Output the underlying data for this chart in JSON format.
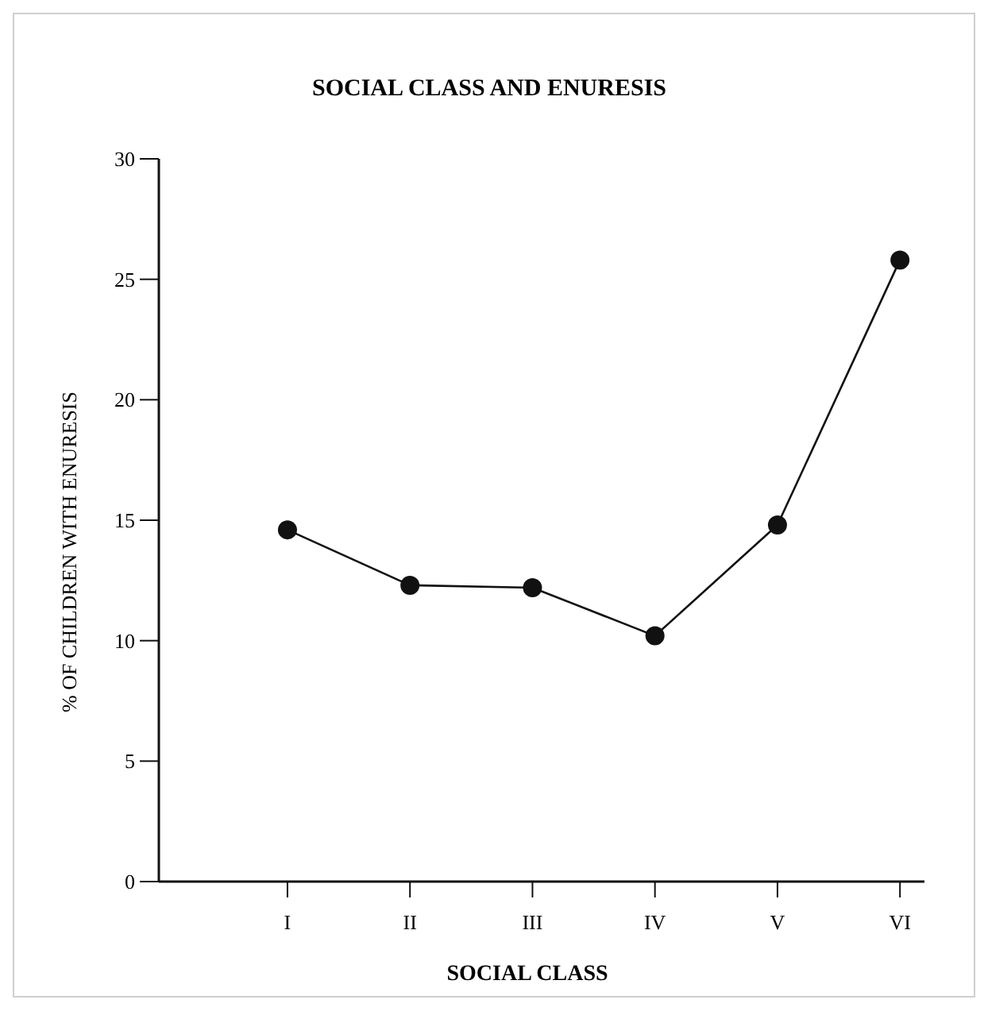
{
  "chart_data": {
    "type": "line",
    "title": "SOCIAL CLASS AND ENURESIS",
    "xlabel": "SOCIAL CLASS",
    "ylabel": "% OF CHILDREN WITH ENURESIS",
    "categories": [
      "I",
      "II",
      "III",
      "IV",
      "V",
      "VI"
    ],
    "values": [
      14.6,
      12.3,
      12.2,
      10.2,
      14.8,
      25.8
    ],
    "color": "#111111",
    "marker": "circle",
    "line_style": "solid",
    "ylim": [
      0,
      30
    ],
    "yticks": [
      0,
      5,
      10,
      15,
      20,
      25,
      30
    ],
    "grid": false
  }
}
